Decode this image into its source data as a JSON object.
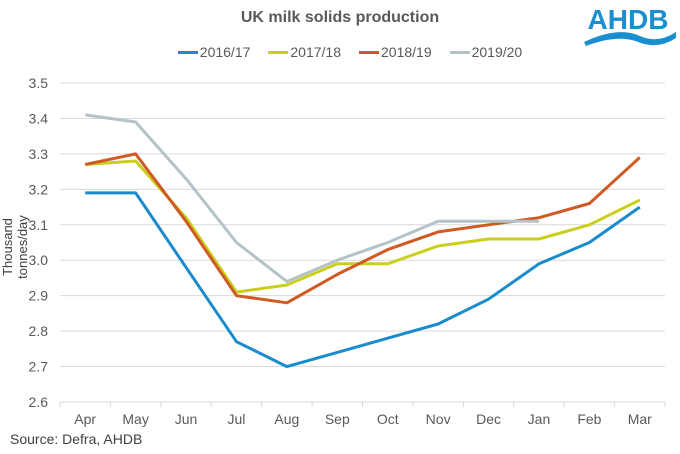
{
  "logo": {
    "text": "AHDB",
    "color": "#1a8fd0"
  },
  "chart_data": {
    "type": "line",
    "title": "UK milk solids production",
    "xlabel": "",
    "ylabel": "Thousand  tonnes/day",
    "ylim": [
      2.6,
      3.5
    ],
    "yticks": [
      "2.6",
      "2.7",
      "2.8",
      "2.9",
      "3.0",
      "3.1",
      "3.2",
      "3.3",
      "3.4",
      "3.5"
    ],
    "grid": true,
    "legend_position": "top",
    "categories": [
      "Apr",
      "May",
      "Jun",
      "Jul",
      "Aug",
      "Sep",
      "Oct",
      "Nov",
      "Dec",
      "Jan",
      "Feb",
      "Mar"
    ],
    "series": [
      {
        "name": "2016/17",
        "color": "#1a8ccc",
        "values": [
          3.19,
          3.19,
          2.98,
          2.77,
          2.7,
          2.74,
          2.78,
          2.82,
          2.89,
          2.99,
          3.05,
          3.15
        ]
      },
      {
        "name": "2017/18",
        "color": "#c9cf1c",
        "values": [
          3.27,
          3.28,
          3.12,
          2.91,
          2.93,
          2.99,
          2.99,
          3.04,
          3.06,
          3.06,
          3.1,
          3.17
        ]
      },
      {
        "name": "2018/19",
        "color": "#cf5a24",
        "values": [
          3.27,
          3.3,
          3.11,
          2.9,
          2.88,
          2.96,
          3.03,
          3.08,
          3.1,
          3.12,
          3.16,
          3.29
        ]
      },
      {
        "name": "2019/20",
        "color": "#b4c3c8",
        "values": [
          3.41,
          3.39,
          3.23,
          3.05,
          2.94,
          3.0,
          3.05,
          3.11,
          3.11,
          3.11,
          null,
          null
        ]
      }
    ],
    "source": "Source: Defra, AHDB"
  }
}
